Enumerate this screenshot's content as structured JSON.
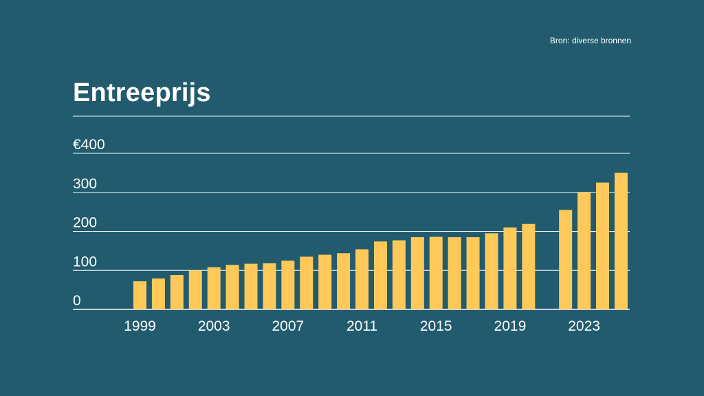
{
  "source": "Bron: diverse bronnen",
  "colors": {
    "background": "#225b6e",
    "bar": "#ffc95a",
    "gridline": "#ffffff"
  },
  "chart_data": {
    "type": "bar",
    "title": "Entreeprijs",
    "xlabel": "",
    "ylabel": "",
    "ylim": [
      0,
      400
    ],
    "y_ticks": [
      0,
      100,
      200,
      300,
      400
    ],
    "y_tick_labels": [
      "0",
      "100",
      "200",
      "300",
      "€400"
    ],
    "x_tick_labels": [
      "1999",
      "2003",
      "2007",
      "2011",
      "2015",
      "2019",
      "2023"
    ],
    "grid": true,
    "legend": "none",
    "categories": [
      "1999",
      "2000",
      "2001",
      "2002",
      "2003",
      "2004",
      "2005",
      "2006",
      "2007",
      "2008",
      "2009",
      "2010",
      "2011",
      "2012",
      "2013",
      "2014",
      "2015",
      "2016",
      "2017",
      "2018",
      "2019",
      "2020",
      "2021",
      "2022",
      "2023",
      "2024",
      "2025"
    ],
    "values": [
      72,
      79,
      88,
      100,
      108,
      114,
      117,
      118,
      125,
      135,
      140,
      144,
      154,
      174,
      177,
      185,
      186,
      185,
      185,
      195,
      210,
      219,
      null,
      255,
      300,
      325,
      350
    ]
  }
}
